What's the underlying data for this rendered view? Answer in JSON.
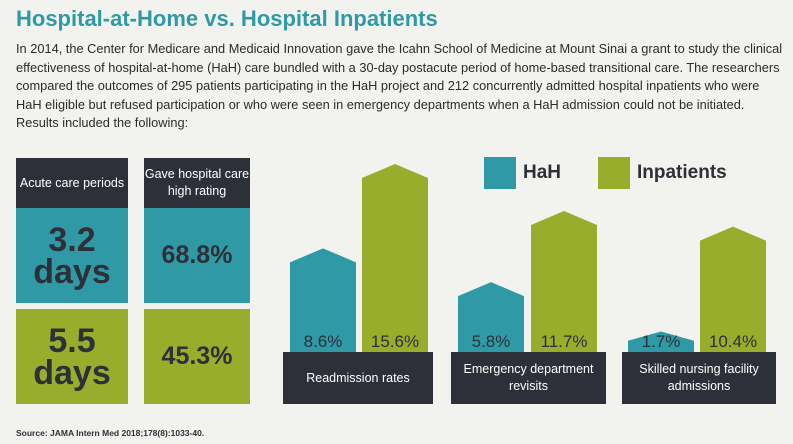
{
  "title": "Hospital-at-Home vs. Hospital Inpatients",
  "intro": "In 2014, the Center for Medicare and Medicaid Innovation gave the Icahn School of Medicine at Mount Sinai a grant to study the clinical effectiveness of hospital-at-home (HaH) care bundled with a 30-day postacute period of home-based transitional care. The researchers compared the outcomes of 295 patients participating in the HaH project and 212 concurrently admitted hospital inpatients who were HaH eligible but refused participation or who were seen in emergency departments when a HaH admission could not be initiated. Results included the following:",
  "stats": {
    "col1_header": "Acute care periods",
    "col2_header": "Gave hospital care high rating",
    "hah_days_value": "3.2",
    "hah_days_unit": "days",
    "hah_rating": "68.8%",
    "inpatient_days_value": "5.5",
    "inpatient_days_unit": "days",
    "inpatient_rating": "45.3%"
  },
  "colors": {
    "hah": "#2f9aa6",
    "inpatients": "#99ad2c",
    "dark": "#2d3038"
  },
  "chart_data": {
    "type": "bar",
    "categories": [
      "Readmission rates",
      "Emergency department revisits",
      "Skilled nursing facility admissions"
    ],
    "series": [
      {
        "name": "HaH",
        "values": [
          8.6,
          5.8,
          1.7
        ],
        "labels": [
          "8.6%",
          "5.8%",
          "1.7%"
        ]
      },
      {
        "name": "Inpatients",
        "values": [
          15.6,
          11.7,
          10.4
        ],
        "labels": [
          "15.6%",
          "11.7%",
          "10.4%"
        ]
      }
    ],
    "legend": [
      "HaH",
      "Inpatients"
    ],
    "legend_position": "top-right",
    "ylim": [
      0,
      16
    ]
  },
  "source": "Source: JAMA Intern Med 2018;178(8):1033-40."
}
